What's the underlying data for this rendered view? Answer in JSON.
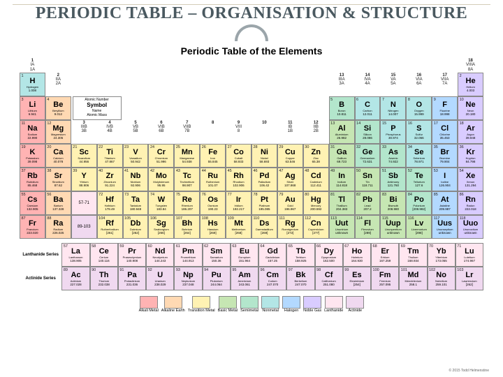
{
  "title": "PERIODIC TABLE – ORGANISATION & STRUCTURE",
  "pt_title": "Periodic Table of the Elements",
  "copyright": "© 2015 Todd Helmenstine",
  "colors": {
    "alkali": "#ffb3b3",
    "alkaline": "#ffd9b3",
    "transition": "#fff2b3",
    "basic": "#c6e6b3",
    "semimetal": "#b3e6cc",
    "nonmetal": "#b3e6e6",
    "halogen": "#b3d9ff",
    "noble": "#d9ccff",
    "lanth": "#ffe6f0",
    "act": "#f0d9f0"
  },
  "key": {
    "z": "Atomic Number",
    "sym": "Symbol",
    "m": "4.003",
    "nm": "Name",
    "mass": "Atomic Mass"
  },
  "group_headers": [
    {
      "n": "1",
      "r": "IA",
      "a": "1A"
    },
    {
      "n": "2",
      "r": "IIA",
      "a": "2A"
    },
    {
      "n": "3",
      "r": "IIIB",
      "a": "3B"
    },
    {
      "n": "4",
      "r": "IVB",
      "a": "4B"
    },
    {
      "n": "5",
      "r": "VB",
      "a": "5B"
    },
    {
      "n": "6",
      "r": "VIB",
      "a": "6B"
    },
    {
      "n": "7",
      "r": "VIIB",
      "a": "7B"
    },
    {
      "n": "8",
      "r": "",
      "a": ""
    },
    {
      "n": "9",
      "r": "VIII",
      "a": "8"
    },
    {
      "n": "10",
      "r": "",
      "a": ""
    },
    {
      "n": "11",
      "r": "IB",
      "a": "1B"
    },
    {
      "n": "12",
      "r": "IIB",
      "a": "2B"
    },
    {
      "n": "13",
      "r": "IIIA",
      "a": "3A"
    },
    {
      "n": "14",
      "r": "IVA",
      "a": "4A"
    },
    {
      "n": "15",
      "r": "VA",
      "a": "5A"
    },
    {
      "n": "16",
      "r": "VIA",
      "a": "6A"
    },
    {
      "n": "17",
      "r": "VIIA",
      "a": "7A"
    },
    {
      "n": "18",
      "r": "VIIIA",
      "a": "8A"
    }
  ],
  "elements": [
    {
      "z": 1,
      "s": "H",
      "n": "Hydrogen",
      "m": "1.008",
      "c": "nonmetal",
      "g": 1,
      "p": 1
    },
    {
      "z": 2,
      "s": "He",
      "n": "Helium",
      "m": "4.003",
      "c": "noble",
      "g": 18,
      "p": 1
    },
    {
      "z": 3,
      "s": "Li",
      "n": "Lithium",
      "m": "6.941",
      "c": "alkali",
      "g": 1,
      "p": 2
    },
    {
      "z": 4,
      "s": "Be",
      "n": "Beryllium",
      "m": "9.012",
      "c": "alkaline",
      "g": 2,
      "p": 2
    },
    {
      "z": 5,
      "s": "B",
      "n": "Boron",
      "m": "10.811",
      "c": "semimetal",
      "g": 13,
      "p": 2
    },
    {
      "z": 6,
      "s": "C",
      "n": "Carbon",
      "m": "12.011",
      "c": "nonmetal",
      "g": 14,
      "p": 2
    },
    {
      "z": 7,
      "s": "N",
      "n": "Nitrogen",
      "m": "14.007",
      "c": "nonmetal",
      "g": 15,
      "p": 2
    },
    {
      "z": 8,
      "s": "O",
      "n": "Oxygen",
      "m": "15.999",
      "c": "nonmetal",
      "g": 16,
      "p": 2
    },
    {
      "z": 9,
      "s": "F",
      "n": "Fluorine",
      "m": "18.998",
      "c": "halogen",
      "g": 17,
      "p": 2
    },
    {
      "z": 10,
      "s": "Ne",
      "n": "Neon",
      "m": "20.180",
      "c": "noble",
      "g": 18,
      "p": 2
    },
    {
      "z": 11,
      "s": "Na",
      "n": "Sodium",
      "m": "22.990",
      "c": "alkali",
      "g": 1,
      "p": 3
    },
    {
      "z": 12,
      "s": "Mg",
      "n": "Magnesium",
      "m": "24.305",
      "c": "alkaline",
      "g": 2,
      "p": 3
    },
    {
      "z": 13,
      "s": "Al",
      "n": "Aluminium",
      "m": "26.982",
      "c": "basic",
      "g": 13,
      "p": 3
    },
    {
      "z": 14,
      "s": "Si",
      "n": "Silicon",
      "m": "28.086",
      "c": "semimetal",
      "g": 14,
      "p": 3
    },
    {
      "z": 15,
      "s": "P",
      "n": "Phosphorus",
      "m": "30.974",
      "c": "nonmetal",
      "g": 15,
      "p": 3
    },
    {
      "z": 16,
      "s": "S",
      "n": "Sulfur",
      "m": "32.066",
      "c": "nonmetal",
      "g": 16,
      "p": 3
    },
    {
      "z": 17,
      "s": "Cl",
      "n": "Chlorine",
      "m": "35.453",
      "c": "halogen",
      "g": 17,
      "p": 3
    },
    {
      "z": 18,
      "s": "Ar",
      "n": "Argon",
      "m": "39.948",
      "c": "noble",
      "g": 18,
      "p": 3
    },
    {
      "z": 19,
      "s": "K",
      "n": "Potassium",
      "m": "39.098",
      "c": "alkali",
      "g": 1,
      "p": 4
    },
    {
      "z": 20,
      "s": "Ca",
      "n": "Calcium",
      "m": "40.078",
      "c": "alkaline",
      "g": 2,
      "p": 4
    },
    {
      "z": 21,
      "s": "Sc",
      "n": "Scandium",
      "m": "44.956",
      "c": "transition",
      "g": 3,
      "p": 4
    },
    {
      "z": 22,
      "s": "Ti",
      "n": "Titanium",
      "m": "47.867",
      "c": "transition",
      "g": 4,
      "p": 4
    },
    {
      "z": 23,
      "s": "V",
      "n": "Vanadium",
      "m": "50.942",
      "c": "transition",
      "g": 5,
      "p": 4
    },
    {
      "z": 24,
      "s": "Cr",
      "n": "Chromium",
      "m": "51.996",
      "c": "transition",
      "g": 6,
      "p": 4
    },
    {
      "z": 25,
      "s": "Mn",
      "n": "Manganese",
      "m": "54.938",
      "c": "transition",
      "g": 7,
      "p": 4
    },
    {
      "z": 26,
      "s": "Fe",
      "n": "Iron",
      "m": "55.845",
      "c": "transition",
      "g": 8,
      "p": 4
    },
    {
      "z": 27,
      "s": "Co",
      "n": "Cobalt",
      "m": "58.933",
      "c": "transition",
      "g": 9,
      "p": 4
    },
    {
      "z": 28,
      "s": "Ni",
      "n": "Nickel",
      "m": "58.693",
      "c": "transition",
      "g": 10,
      "p": 4
    },
    {
      "z": 29,
      "s": "Cu",
      "n": "Copper",
      "m": "63.546",
      "c": "transition",
      "g": 11,
      "p": 4
    },
    {
      "z": 30,
      "s": "Zn",
      "n": "Zinc",
      "m": "65.38",
      "c": "transition",
      "g": 12,
      "p": 4
    },
    {
      "z": 31,
      "s": "Ga",
      "n": "Gallium",
      "m": "69.723",
      "c": "basic",
      "g": 13,
      "p": 4
    },
    {
      "z": 32,
      "s": "Ge",
      "n": "Germanium",
      "m": "72.631",
      "c": "semimetal",
      "g": 14,
      "p": 4
    },
    {
      "z": 33,
      "s": "As",
      "n": "Arsenic",
      "m": "74.922",
      "c": "semimetal",
      "g": 15,
      "p": 4
    },
    {
      "z": 34,
      "s": "Se",
      "n": "Selenium",
      "m": "78.971",
      "c": "nonmetal",
      "g": 16,
      "p": 4
    },
    {
      "z": 35,
      "s": "Br",
      "n": "Bromine",
      "m": "79.904",
      "c": "halogen",
      "g": 17,
      "p": 4
    },
    {
      "z": 36,
      "s": "Kr",
      "n": "Krypton",
      "m": "84.798",
      "c": "noble",
      "g": 18,
      "p": 4
    },
    {
      "z": 37,
      "s": "Rb",
      "n": "Rubidium",
      "m": "85.468",
      "c": "alkali",
      "g": 1,
      "p": 5
    },
    {
      "z": 38,
      "s": "Sr",
      "n": "Strontium",
      "m": "87.62",
      "c": "alkaline",
      "g": 2,
      "p": 5
    },
    {
      "z": 39,
      "s": "Y",
      "n": "Yttrium",
      "m": "88.906",
      "c": "transition",
      "g": 3,
      "p": 5
    },
    {
      "z": 40,
      "s": "Zr",
      "n": "Zirconium",
      "m": "91.224",
      "c": "transition",
      "g": 4,
      "p": 5
    },
    {
      "z": 41,
      "s": "Nb",
      "n": "Niobium",
      "m": "92.906",
      "c": "transition",
      "g": 5,
      "p": 5
    },
    {
      "z": 42,
      "s": "Mo",
      "n": "Molybdenum",
      "m": "95.95",
      "c": "transition",
      "g": 6,
      "p": 5
    },
    {
      "z": 43,
      "s": "Tc",
      "n": "Technetium",
      "m": "98.907",
      "c": "transition",
      "g": 7,
      "p": 5
    },
    {
      "z": 44,
      "s": "Ru",
      "n": "Ruthenium",
      "m": "101.07",
      "c": "transition",
      "g": 8,
      "p": 5
    },
    {
      "z": 45,
      "s": "Rh",
      "n": "Rhodium",
      "m": "102.906",
      "c": "transition",
      "g": 9,
      "p": 5
    },
    {
      "z": 46,
      "s": "Pd",
      "n": "Palladium",
      "m": "106.42",
      "c": "transition",
      "g": 10,
      "p": 5
    },
    {
      "z": 47,
      "s": "Ag",
      "n": "Silver",
      "m": "107.868",
      "c": "transition",
      "g": 11,
      "p": 5
    },
    {
      "z": 48,
      "s": "Cd",
      "n": "Cadmium",
      "m": "112.411",
      "c": "transition",
      "g": 12,
      "p": 5
    },
    {
      "z": 49,
      "s": "In",
      "n": "Indium",
      "m": "114.818",
      "c": "basic",
      "g": 13,
      "p": 5
    },
    {
      "z": 50,
      "s": "Sn",
      "n": "Tin",
      "m": "118.711",
      "c": "basic",
      "g": 14,
      "p": 5
    },
    {
      "z": 51,
      "s": "Sb",
      "n": "Antimony",
      "m": "121.760",
      "c": "semimetal",
      "g": 15,
      "p": 5
    },
    {
      "z": 52,
      "s": "Te",
      "n": "Tellurium",
      "m": "127.6",
      "c": "semimetal",
      "g": 16,
      "p": 5
    },
    {
      "z": 53,
      "s": "I",
      "n": "Iodine",
      "m": "126.904",
      "c": "halogen",
      "g": 17,
      "p": 5
    },
    {
      "z": 54,
      "s": "Xe",
      "n": "Xenon",
      "m": "131.294",
      "c": "noble",
      "g": 18,
      "p": 5
    },
    {
      "z": 55,
      "s": "Cs",
      "n": "Caesium",
      "m": "132.905",
      "c": "alkali",
      "g": 1,
      "p": 6
    },
    {
      "z": 56,
      "s": "Ba",
      "n": "Barium",
      "m": "137.328",
      "c": "alkaline",
      "g": 2,
      "p": 6
    },
    {
      "z": 72,
      "s": "Hf",
      "n": "Hafnium",
      "m": "178.49",
      "c": "transition",
      "g": 4,
      "p": 6
    },
    {
      "z": 73,
      "s": "Ta",
      "n": "Tantalum",
      "m": "180.948",
      "c": "transition",
      "g": 5,
      "p": 6
    },
    {
      "z": 74,
      "s": "W",
      "n": "Tungsten",
      "m": "183.84",
      "c": "transition",
      "g": 6,
      "p": 6
    },
    {
      "z": 75,
      "s": "Re",
      "n": "Rhenium",
      "m": "186.207",
      "c": "transition",
      "g": 7,
      "p": 6
    },
    {
      "z": 76,
      "s": "Os",
      "n": "Osmium",
      "m": "190.23",
      "c": "transition",
      "g": 8,
      "p": 6
    },
    {
      "z": 77,
      "s": "Ir",
      "n": "Iridium",
      "m": "192.217",
      "c": "transition",
      "g": 9,
      "p": 6
    },
    {
      "z": 78,
      "s": "Pt",
      "n": "Platinum",
      "m": "195.085",
      "c": "transition",
      "g": 10,
      "p": 6
    },
    {
      "z": 79,
      "s": "Au",
      "n": "Gold",
      "m": "196.967",
      "c": "transition",
      "g": 11,
      "p": 6
    },
    {
      "z": 80,
      "s": "Hg",
      "n": "Mercury",
      "m": "200.592",
      "c": "transition",
      "g": 12,
      "p": 6
    },
    {
      "z": 81,
      "s": "Tl",
      "n": "Thallium",
      "m": "204.383",
      "c": "basic",
      "g": 13,
      "p": 6
    },
    {
      "z": 82,
      "s": "Pb",
      "n": "Lead",
      "m": "207.2",
      "c": "basic",
      "g": 14,
      "p": 6
    },
    {
      "z": 83,
      "s": "Bi",
      "n": "Bismuth",
      "m": "208.980",
      "c": "basic",
      "g": 15,
      "p": 6
    },
    {
      "z": 84,
      "s": "Po",
      "n": "Polonium",
      "m": "[208.982]",
      "c": "semimetal",
      "g": 16,
      "p": 6
    },
    {
      "z": 85,
      "s": "At",
      "n": "Astatine",
      "m": "209.987",
      "c": "halogen",
      "g": 17,
      "p": 6
    },
    {
      "z": 86,
      "s": "Rn",
      "n": "Radon",
      "m": "222.018",
      "c": "noble",
      "g": 18,
      "p": 6
    },
    {
      "z": 87,
      "s": "Fr",
      "n": "Francium",
      "m": "223.020",
      "c": "alkali",
      "g": 1,
      "p": 7
    },
    {
      "z": 88,
      "s": "Ra",
      "n": "Radium",
      "m": "226.025",
      "c": "alkaline",
      "g": 2,
      "p": 7
    },
    {
      "z": 104,
      "s": "Rf",
      "n": "Rutherfordium",
      "m": "[261]",
      "c": "transition",
      "g": 4,
      "p": 7
    },
    {
      "z": 105,
      "s": "Db",
      "n": "Dubnium",
      "m": "[262]",
      "c": "transition",
      "g": 5,
      "p": 7
    },
    {
      "z": 106,
      "s": "Sg",
      "n": "Seaborgium",
      "m": "[266]",
      "c": "transition",
      "g": 6,
      "p": 7
    },
    {
      "z": 107,
      "s": "Bh",
      "n": "Bohrium",
      "m": "[264]",
      "c": "transition",
      "g": 7,
      "p": 7
    },
    {
      "z": 108,
      "s": "Hs",
      "n": "Hassium",
      "m": "[269]",
      "c": "transition",
      "g": 8,
      "p": 7
    },
    {
      "z": 109,
      "s": "Mt",
      "n": "Meitnerium",
      "m": "[268]",
      "c": "transition",
      "g": 9,
      "p": 7
    },
    {
      "z": 110,
      "s": "Ds",
      "n": "Darmstadtium",
      "m": "[269]",
      "c": "transition",
      "g": 10,
      "p": 7
    },
    {
      "z": 111,
      "s": "Rg",
      "n": "Roentgenium",
      "m": "[272]",
      "c": "transition",
      "g": 11,
      "p": 7
    },
    {
      "z": 112,
      "s": "Cn",
      "n": "Copernicium",
      "m": "[277]",
      "c": "transition",
      "g": 12,
      "p": 7
    },
    {
      "z": 113,
      "s": "Uut",
      "n": "Ununtrium",
      "m": "unknown",
      "c": "basic",
      "g": 13,
      "p": 7
    },
    {
      "z": 114,
      "s": "Fl",
      "n": "Flerovium",
      "m": "[289]",
      "c": "basic",
      "g": 14,
      "p": 7
    },
    {
      "z": 115,
      "s": "Uup",
      "n": "Ununpentium",
      "m": "unknown",
      "c": "basic",
      "g": 15,
      "p": 7
    },
    {
      "z": 116,
      "s": "Lv",
      "n": "Livermorium",
      "m": "[298]",
      "c": "basic",
      "g": 16,
      "p": 7
    },
    {
      "z": 117,
      "s": "Uus",
      "n": "Ununseptium",
      "m": "unknown",
      "c": "halogen",
      "g": 17,
      "p": 7
    },
    {
      "z": 118,
      "s": "Uuo",
      "n": "Ununoctium",
      "m": "unknown",
      "c": "noble",
      "g": 18,
      "p": 7
    }
  ],
  "ranges": {
    "lanth": "57-71",
    "act": "89-103"
  },
  "lanth_label": "Lanthanide Series",
  "act_label": "Actinide Series",
  "lanthanides": [
    {
      "z": 57,
      "s": "La",
      "n": "Lanthanum",
      "m": "138.905"
    },
    {
      "z": 58,
      "s": "Ce",
      "n": "Cerium",
      "m": "140.116"
    },
    {
      "z": 59,
      "s": "Pr",
      "n": "Praseodymium",
      "m": "140.908"
    },
    {
      "z": 60,
      "s": "Nd",
      "n": "Neodymium",
      "m": "144.243"
    },
    {
      "z": 61,
      "s": "Pm",
      "n": "Promethium",
      "m": "144.913"
    },
    {
      "z": 62,
      "s": "Sm",
      "n": "Samarium",
      "m": "150.36"
    },
    {
      "z": 63,
      "s": "Eu",
      "n": "Europium",
      "m": "151.964"
    },
    {
      "z": 64,
      "s": "Gd",
      "n": "Gadolinium",
      "m": "157.25"
    },
    {
      "z": 65,
      "s": "Tb",
      "n": "Terbium",
      "m": "158.925"
    },
    {
      "z": 66,
      "s": "Dy",
      "n": "Dysprosium",
      "m": "162.500"
    },
    {
      "z": 67,
      "s": "Ho",
      "n": "Holmium",
      "m": "164.930"
    },
    {
      "z": 68,
      "s": "Er",
      "n": "Erbium",
      "m": "167.259"
    },
    {
      "z": 69,
      "s": "Tm",
      "n": "Thulium",
      "m": "168.934"
    },
    {
      "z": 70,
      "s": "Yb",
      "n": "Ytterbium",
      "m": "173.055"
    },
    {
      "z": 71,
      "s": "Lu",
      "n": "Lutetium",
      "m": "174.967"
    }
  ],
  "actinides": [
    {
      "z": 89,
      "s": "Ac",
      "n": "Actinium",
      "m": "227.028"
    },
    {
      "z": 90,
      "s": "Th",
      "n": "Thorium",
      "m": "232.038"
    },
    {
      "z": 91,
      "s": "Pa",
      "n": "Protactinium",
      "m": "231.036"
    },
    {
      "z": 92,
      "s": "U",
      "n": "Uranium",
      "m": "238.029"
    },
    {
      "z": 93,
      "s": "Np",
      "n": "Neptunium",
      "m": "237.048"
    },
    {
      "z": 94,
      "s": "Pu",
      "n": "Plutonium",
      "m": "244.064"
    },
    {
      "z": 95,
      "s": "Am",
      "n": "Americium",
      "m": "243.061"
    },
    {
      "z": 96,
      "s": "Cm",
      "n": "Curium",
      "m": "247.070"
    },
    {
      "z": 97,
      "s": "Bk",
      "n": "Berkelium",
      "m": "247.070"
    },
    {
      "z": 98,
      "s": "Cf",
      "n": "Californium",
      "m": "251.080"
    },
    {
      "z": 99,
      "s": "Es",
      "n": "Einsteinium",
      "m": "[254]"
    },
    {
      "z": 100,
      "s": "Fm",
      "n": "Fermium",
      "m": "257.095"
    },
    {
      "z": 101,
      "s": "Md",
      "n": "Mendelevium",
      "m": "258.1"
    },
    {
      "z": 102,
      "s": "No",
      "n": "Nobelium",
      "m": "259.101"
    },
    {
      "z": 103,
      "s": "Lr",
      "n": "Lawrencium",
      "m": "[262]"
    }
  ],
  "legend": [
    {
      "c": "alkali",
      "l": "Alkali Metal"
    },
    {
      "c": "alkaline",
      "l": "Alkaline Earth"
    },
    {
      "c": "transition",
      "l": "Transition Metal"
    },
    {
      "c": "basic",
      "l": "Basic Metal"
    },
    {
      "c": "semimetal",
      "l": "Semimetal"
    },
    {
      "c": "nonmetal",
      "l": "Nonmetal"
    },
    {
      "c": "halogen",
      "l": "Halogen"
    },
    {
      "c": "noble",
      "l": "Noble Gas"
    },
    {
      "c": "lanth",
      "l": "Lanthanide"
    },
    {
      "c": "act",
      "l": "Actinide"
    }
  ]
}
